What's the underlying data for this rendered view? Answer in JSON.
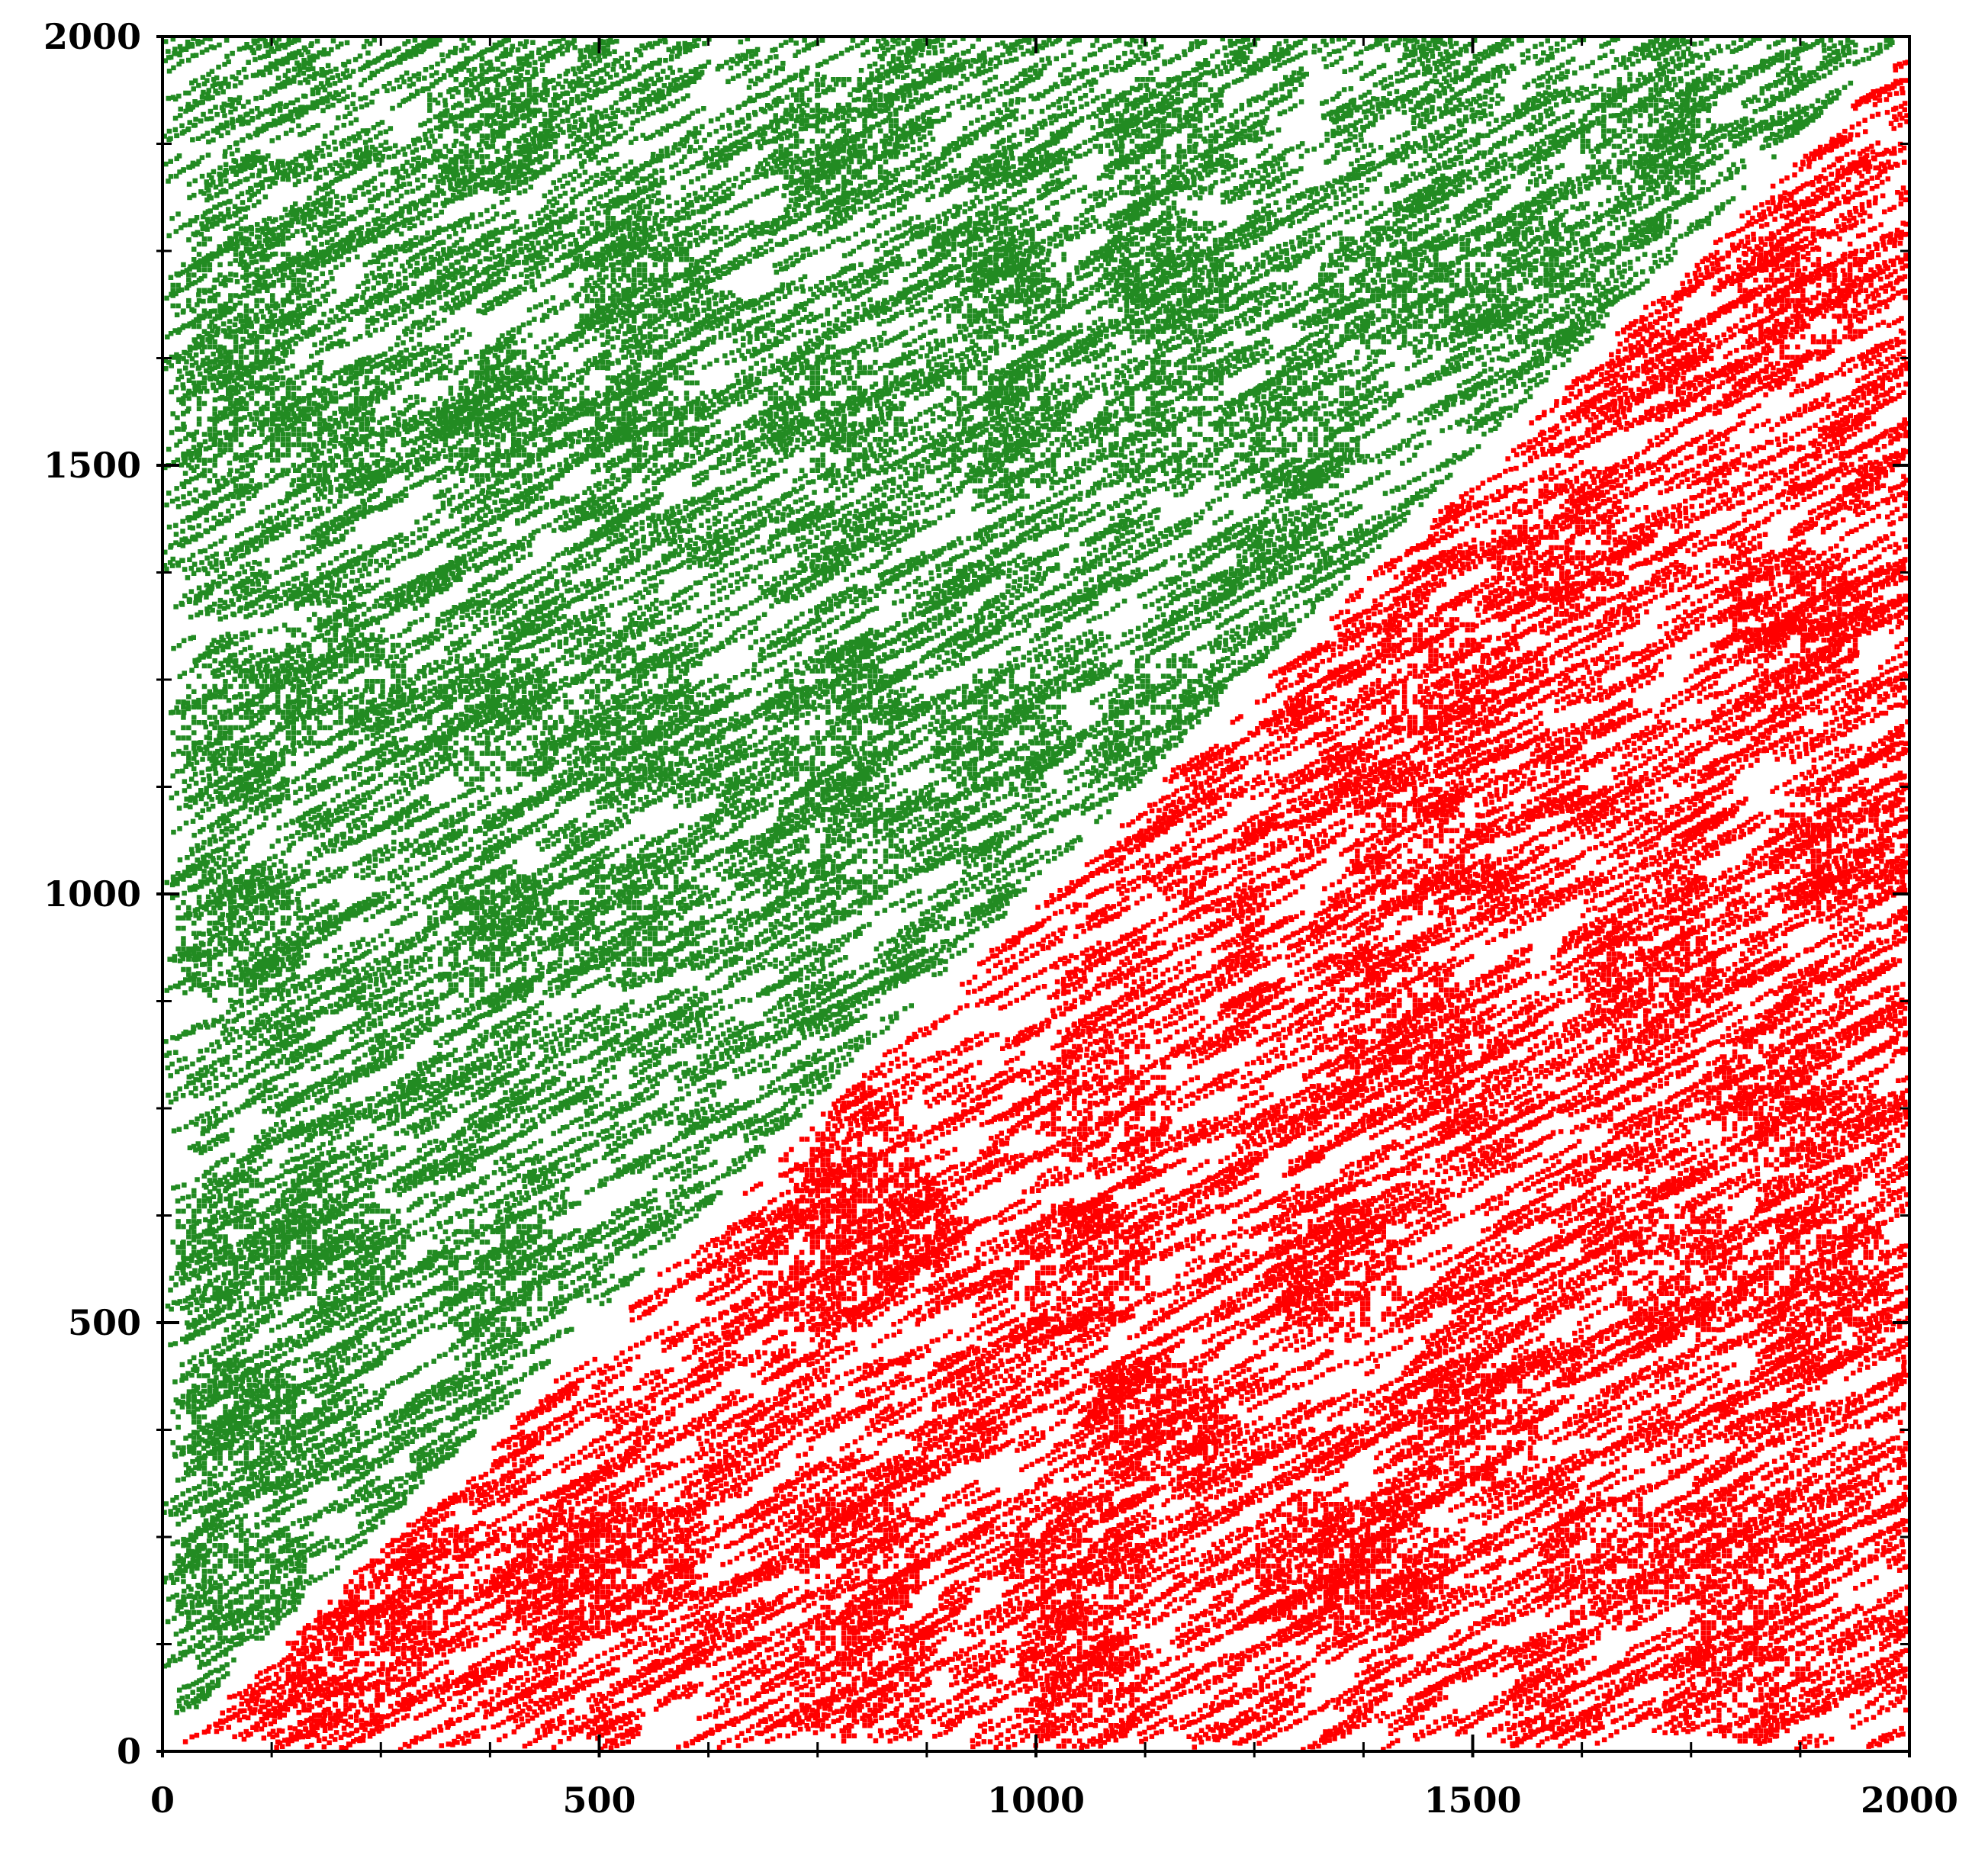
{
  "chart_data": {
    "type": "scatter",
    "title": "",
    "xlabel": "",
    "ylabel": "",
    "xlim": [
      0,
      2000
    ],
    "ylim": [
      0,
      2000
    ],
    "x_ticks": [
      0,
      500,
      1000,
      1500,
      2000
    ],
    "y_ticks": [
      0,
      500,
      1000,
      1500,
      2000
    ],
    "x_tick_labels": [
      "0",
      "500",
      "1000",
      "1500",
      "2000"
    ],
    "y_tick_labels": [
      "0",
      "500",
      "1000",
      "1500",
      "2000"
    ],
    "minor_tick_step": 125,
    "grid": false,
    "legend": "none",
    "series": [
      {
        "color": "#228b22",
        "region": "points above the diagonal y = x",
        "clusters": [
          [
            90,
            1700
          ],
          [
            90,
            1550
          ],
          [
            90,
            1200
          ],
          [
            90,
            950
          ],
          [
            90,
            600
          ],
          [
            90,
            380
          ],
          [
            90,
            200
          ],
          [
            200,
            1540
          ],
          [
            200,
            1250
          ],
          [
            200,
            600
          ],
          [
            380,
            1900
          ],
          [
            380,
            1560
          ],
          [
            380,
            1200
          ],
          [
            380,
            950
          ],
          [
            380,
            560
          ],
          [
            540,
            1720
          ],
          [
            540,
            1560
          ],
          [
            540,
            1200
          ],
          [
            540,
            970
          ],
          [
            770,
            1880
          ],
          [
            770,
            1560
          ],
          [
            770,
            1200
          ],
          [
            770,
            1050
          ],
          [
            960,
            1720
          ],
          [
            960,
            1540
          ],
          [
            960,
            1190
          ],
          [
            1150,
            1880
          ],
          [
            1150,
            1720
          ],
          [
            1150,
            1550
          ],
          [
            1150,
            1200
          ],
          [
            1300,
            1540
          ],
          [
            1400,
            1700
          ],
          [
            1560,
            1720
          ],
          [
            1700,
            1880
          ]
        ]
      },
      {
        "color": "#ff0000",
        "region": "points below the diagonal y = x",
        "clusters": [
          [
            220,
            100
          ],
          [
            280,
            210
          ],
          [
            460,
            210
          ],
          [
            540,
            220
          ],
          [
            800,
            230
          ],
          [
            800,
            90
          ],
          [
            760,
            560
          ],
          [
            780,
            700
          ],
          [
            820,
            620
          ],
          [
            1050,
            220
          ],
          [
            1050,
            80
          ],
          [
            1050,
            560
          ],
          [
            1080,
            760
          ],
          [
            1140,
            380
          ],
          [
            1330,
            220
          ],
          [
            1350,
            560
          ],
          [
            1400,
            220
          ],
          [
            1420,
            850
          ],
          [
            1440,
            1050
          ],
          [
            1460,
            1250
          ],
          [
            1500,
            380
          ],
          [
            1600,
            1400
          ],
          [
            1660,
            220
          ],
          [
            1700,
            900
          ],
          [
            1740,
            560
          ],
          [
            1800,
            220
          ],
          [
            1820,
            90
          ],
          [
            1850,
            760
          ],
          [
            1870,
            1320
          ],
          [
            1880,
            1700
          ],
          [
            1900,
            560
          ],
          [
            1920,
            1050
          ]
        ]
      }
    ]
  }
}
